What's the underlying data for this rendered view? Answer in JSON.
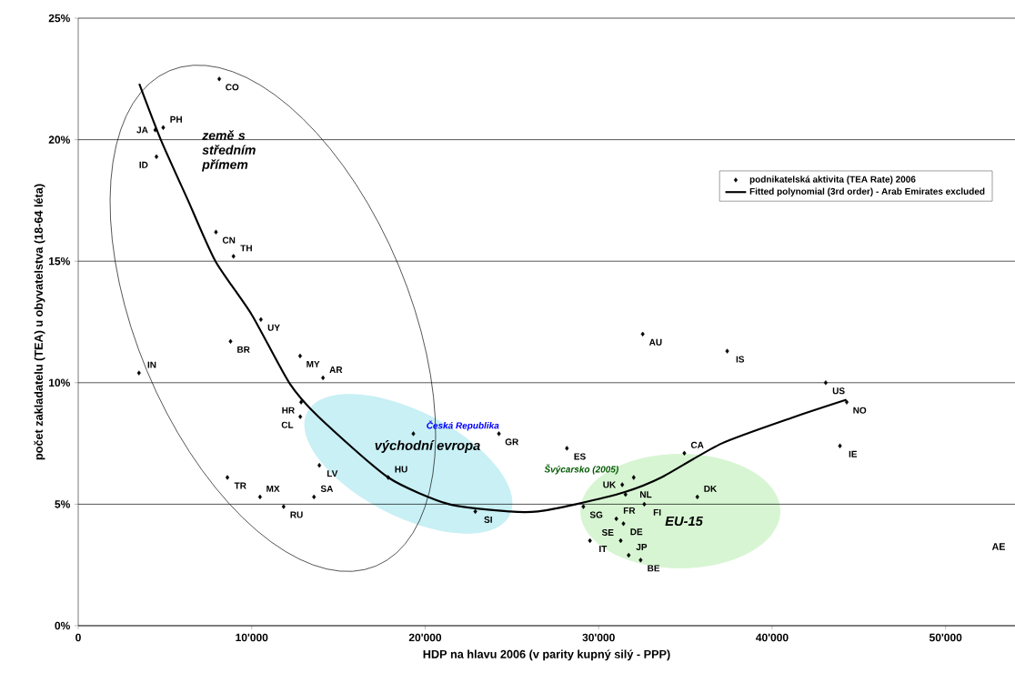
{
  "chart_data": {
    "type": "scatter",
    "xlabel": "HDP na hlavu 2006  (v parity kupný silý - PPP)",
    "ylabel": "počet zakladatelu (TEA) u obyvatelstva (18-64 léta)",
    "xlim": [
      0,
      54000
    ],
    "xticks": [
      0,
      {
        "value": 10000,
        "label": "10'000"
      },
      {
        "value": 20000,
        "label": "20'000"
      },
      {
        "value": 30000,
        "label": "30'000"
      },
      {
        "value": 40000,
        "label": "40'000"
      },
      {
        "value": 50000,
        "label": "50'000"
      }
    ],
    "ylim": [
      0,
      25
    ],
    "yticks": [
      {
        "value": 0,
        "label": "0%"
      },
      {
        "value": 5,
        "label": "5%"
      },
      {
        "value": 10,
        "label": "10%"
      },
      {
        "value": 15,
        "label": "15%"
      },
      {
        "value": 20,
        "label": "20%"
      },
      {
        "value": 25,
        "label": "25%"
      }
    ],
    "grid": "y",
    "legend": "top right",
    "marker": "diamond",
    "series": [
      {
        "name": "podnikatelská aktivita (TEA Rate) 2006",
        "color": "#000000",
        "x": [
          8130,
          4440,
          4900,
          4510,
          7940,
          8950,
          10530,
          8780,
          12790,
          14110,
          3500,
          12850,
          12800,
          13900,
          19320,
          24250,
          17870,
          8600,
          13590,
          10480,
          11840,
          22890,
          28170,
          32540,
          37410,
          43090,
          44300,
          43910,
          34940,
          32020,
          31360,
          31550,
          32630,
          35690,
          29120,
          31020,
          31430,
          29500,
          31270,
          31730,
          32420
        ],
        "values": [
          22.5,
          20.4,
          20.5,
          19.3,
          16.2,
          15.2,
          12.6,
          11.7,
          11.1,
          10.2,
          10.4,
          9.2,
          8.6,
          6.6,
          7.9,
          7.9,
          6.1,
          6.1,
          5.3,
          5.3,
          4.9,
          4.7,
          7.3,
          12.0,
          11.3,
          10.0,
          9.2,
          7.4,
          7.1,
          6.1,
          5.8,
          5.4,
          5.0,
          5.3,
          4.9,
          4.4,
          4.2,
          3.5,
          3.5,
          2.9,
          2.7
        ]
      },
      {
        "type": "line",
        "name": "Fitted polynomial (3rd order) - Arab Emirates excluded",
        "color": "#000000",
        "marker": "none",
        "line_style": "solid",
        "x": [
          3520,
          4760,
          6330,
          7910,
          10000,
          12160,
          13850,
          17870,
          21370,
          24870,
          26500,
          28710,
          31510,
          33610,
          37090,
          41310,
          44280
        ],
        "values": [
          22.3,
          20.0,
          17.5,
          15.0,
          12.8,
          10.0,
          8.6,
          6.1,
          5.0,
          4.7,
          4.7,
          5.0,
          5.5,
          6.1,
          7.5,
          8.6,
          9.3
        ]
      }
    ],
    "annotations": [
      {
        "text": "CO",
        "x": 8130,
        "y": 22.5
      },
      {
        "text": "JA",
        "x": 4440,
        "y": 20.4
      },
      {
        "text": "PH",
        "x": 4900,
        "y": 20.5
      },
      {
        "text": "ID",
        "x": 4510,
        "y": 19.3
      },
      {
        "text": "CN",
        "x": 7940,
        "y": 16.2
      },
      {
        "text": "TH",
        "x": 8950,
        "y": 15.2
      },
      {
        "text": "UY",
        "x": 10530,
        "y": 12.6
      },
      {
        "text": "BR",
        "x": 8780,
        "y": 11.7
      },
      {
        "text": "MY",
        "x": 12790,
        "y": 11.1
      },
      {
        "text": "AR",
        "x": 14110,
        "y": 10.2
      },
      {
        "text": "IN",
        "x": 3500,
        "y": 10.4
      },
      {
        "text": "HR",
        "x": 12850,
        "y": 9.2
      },
      {
        "text": "CL",
        "x": 12800,
        "y": 8.6
      },
      {
        "text": "LV",
        "x": 13900,
        "y": 6.6
      },
      {
        "text": "GR",
        "x": 24250,
        "y": 7.9
      },
      {
        "text": "HU",
        "x": 17870,
        "y": 6.1
      },
      {
        "text": "TR",
        "x": 8600,
        "y": 6.1
      },
      {
        "text": "SA",
        "x": 13590,
        "y": 5.3
      },
      {
        "text": "MX",
        "x": 10480,
        "y": 5.3
      },
      {
        "text": "RU",
        "x": 11840,
        "y": 4.9
      },
      {
        "text": "SI",
        "x": 22890,
        "y": 4.7
      },
      {
        "text": "ES",
        "x": 28170,
        "y": 7.3
      },
      {
        "text": "AU",
        "x": 32540,
        "y": 12.0
      },
      {
        "text": "IS",
        "x": 37410,
        "y": 11.3
      },
      {
        "text": "US",
        "x": 43090,
        "y": 10.0
      },
      {
        "text": "NO",
        "x": 44300,
        "y": 9.2
      },
      {
        "text": "IE",
        "x": 43910,
        "y": 7.4
      },
      {
        "text": "CA",
        "x": 34940,
        "y": 7.1
      },
      {
        "text": "UK",
        "x": 31360,
        "y": 5.8
      },
      {
        "text": "SG",
        "x": 29120,
        "y": 4.9
      },
      {
        "text": "FI",
        "x": 32630,
        "y": 5.0
      },
      {
        "text": "DK",
        "x": 35690,
        "y": 5.3
      },
      {
        "text": "NL",
        "x": 31550,
        "y": 5.4
      },
      {
        "text": "FR",
        "x": 31020,
        "y": 4.4
      },
      {
        "text": "DE",
        "x": 31430,
        "y": 4.2
      },
      {
        "text": "IT",
        "x": 29500,
        "y": 3.5
      },
      {
        "text": "SE",
        "x": 31270,
        "y": 3.5
      },
      {
        "text": "JP",
        "x": 31730,
        "y": 2.9
      },
      {
        "text": "BE",
        "x": 32420,
        "y": 2.7
      },
      {
        "text": "Česká Republika",
        "x": 19320,
        "y": 7.9
      },
      {
        "text": "Švýcarsko (2005)",
        "x": 32020,
        "y": 6.1
      },
      "AE",
      "země s středním přímem",
      "východní evropa",
      "EU-15"
    ]
  }
}
